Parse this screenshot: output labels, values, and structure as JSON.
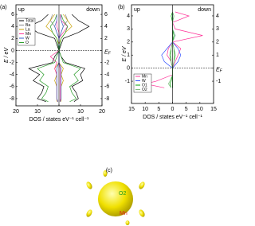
{
  "chart_data": [
    {
      "type": "dos",
      "panel": "(a)",
      "left_label": "up",
      "right_label": "down",
      "ylabel": "E / eV",
      "xlabel": "DOS / states eV⁻¹ cell⁻¹",
      "fermi_label": {
        "main": "E",
        "sub": "F"
      },
      "xlim": [
        -20,
        20
      ],
      "xticks": [
        {
          "value": -20,
          "label": "20"
        },
        {
          "value": -10,
          "label": "10"
        },
        0,
        10,
        20
      ],
      "ylim": [
        -9.2,
        7.6
      ],
      "yticks": [
        6,
        4,
        2,
        0,
        -2,
        -4,
        -6,
        -8
      ],
      "energy": [
        -8.5,
        -8,
        -7,
        -6,
        -5,
        -4,
        -3,
        -2,
        -1,
        0,
        1,
        2,
        3,
        4,
        5,
        6
      ],
      "series": [
        {
          "name": "Total",
          "color": "#000000",
          "up": [
            -6,
            -10,
            -8,
            -7,
            -12,
            -9,
            -14,
            -3,
            -2,
            0,
            -1,
            -2,
            -10,
            -14,
            -8,
            -5
          ],
          "down": [
            7,
            9,
            8,
            6,
            11,
            10,
            12,
            3,
            1,
            0,
            1,
            2,
            9,
            14,
            9,
            6
          ]
        },
        {
          "name": "Ba",
          "color": "#888888",
          "up": [
            -0.5,
            -1,
            -1,
            -1,
            -1,
            -1,
            -1,
            0,
            0,
            0,
            0,
            0,
            -1,
            -2,
            -4,
            -3
          ],
          "down": [
            0.5,
            1,
            1,
            1,
            1,
            1,
            1,
            0,
            0,
            0,
            0,
            0,
            1,
            2,
            4,
            3
          ]
        },
        {
          "name": "La",
          "color": "#c8a000",
          "up": [
            -1,
            -1,
            -1,
            -1,
            -2,
            -1,
            -2,
            0,
            0,
            0,
            0,
            -1,
            -3,
            -6,
            -4,
            -2
          ],
          "down": [
            1,
            1,
            1,
            1,
            2,
            1,
            2,
            0,
            0,
            0,
            0,
            1,
            3,
            6,
            4,
            2
          ]
        },
        {
          "name": "Mn",
          "color": "#ff3399",
          "up": [
            -0.5,
            -1,
            -1,
            -1,
            -1,
            -1,
            -2,
            -1,
            -4,
            0,
            0,
            0,
            0,
            -1,
            -1,
            -1
          ],
          "down": [
            0.5,
            0.5,
            0.5,
            0.5,
            0.5,
            0.5,
            0.5,
            0,
            0,
            0,
            0,
            0,
            2,
            4,
            1,
            0.5
          ]
        },
        {
          "name": "W",
          "color": "#3a5fcd",
          "up": [
            -0.5,
            -1,
            -1,
            -1,
            -1,
            -1,
            -1,
            0,
            0,
            0,
            0,
            0,
            -1,
            -2,
            -1,
            -1
          ],
          "down": [
            0.5,
            1,
            1,
            1,
            1,
            1,
            1,
            0,
            0,
            0,
            0,
            0,
            1,
            2,
            1,
            1
          ]
        },
        {
          "name": "O",
          "color": "#2a9d2a",
          "up": [
            -5,
            -8,
            -6,
            -5,
            -9,
            -7,
            -10,
            -2,
            -1,
            0,
            -0.5,
            -1,
            -3,
            -4,
            -2,
            -1
          ],
          "down": [
            5,
            8,
            6,
            5,
            9,
            7,
            10,
            2,
            1,
            0,
            0.5,
            1,
            3,
            4,
            2,
            1
          ]
        }
      ]
    },
    {
      "type": "dos",
      "panel": "(b)",
      "left_label": "up",
      "right_label": "down",
      "ylabel": "E / eV",
      "xlabel": "DOS / states eV⁻¹ cell⁻¹",
      "fermi_label": {
        "main": "E",
        "sub": "F"
      },
      "xlim": [
        -15,
        15
      ],
      "xticks": [
        {
          "value": -15,
          "label": "15"
        },
        {
          "value": -10,
          "label": "10"
        },
        {
          "value": -5,
          "label": "5"
        },
        0,
        5,
        10,
        15
      ],
      "ylim": [
        -2.7,
        4.85
      ],
      "yticks": [
        4,
        3,
        2,
        1,
        0,
        -1
      ],
      "energy": [
        -1.5,
        -1.2,
        -1,
        -0.5,
        0,
        0.5,
        1,
        1.5,
        2,
        2.5,
        3,
        3.5,
        4,
        4.3
      ],
      "series": [
        {
          "name": "Mn",
          "color": "#ff3399",
          "up": [
            -3,
            -10,
            -6,
            0,
            0,
            -0.5,
            -2,
            -1.5,
            0,
            0,
            0,
            0,
            0,
            0
          ],
          "down": [
            0,
            0,
            0,
            0,
            0,
            1,
            2,
            3,
            0,
            11,
            1,
            0,
            6,
            1
          ]
        },
        {
          "name": "W",
          "color": "#3050ff",
          "up": [
            0,
            0,
            0,
            0,
            0,
            -3,
            -4,
            -2,
            0,
            0,
            0,
            0,
            0,
            0
          ],
          "down": [
            0,
            0,
            0,
            0,
            0,
            2,
            3,
            2,
            0,
            1,
            0,
            0,
            0,
            0
          ]
        },
        {
          "name": "O1",
          "color": "#00a000",
          "up": [
            -0.5,
            -1,
            -0.5,
            0,
            0,
            -0.5,
            -1,
            -0.5,
            0,
            0,
            0,
            0,
            -0.5,
            0
          ],
          "down": [
            0,
            0,
            0,
            0,
            0,
            0.5,
            1,
            0.5,
            0,
            0.5,
            0,
            0,
            0.5,
            0
          ]
        },
        {
          "name": "O2",
          "color": "#80c080",
          "up": [
            -0.5,
            -1.5,
            -1,
            0,
            0,
            -0.5,
            -0.5,
            -0.5,
            0,
            0,
            0,
            0,
            0,
            0
          ],
          "down": [
            0,
            0,
            0,
            0,
            0,
            0.5,
            0.5,
            0.5,
            0,
            1,
            0,
            0,
            0.5,
            0
          ]
        }
      ]
    }
  ],
  "panel_c": {
    "label": "(c)",
    "atom_o2": "O2",
    "atom_mn": "Mn"
  }
}
